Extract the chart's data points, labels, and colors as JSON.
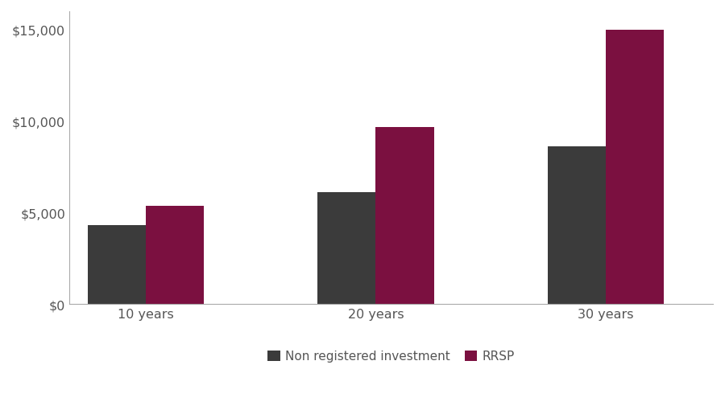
{
  "categories": [
    "10 years",
    "20 years",
    "30 years"
  ],
  "non_registered": [
    4300,
    6100,
    8600
  ],
  "rrsp": [
    5350,
    9650,
    15000
  ],
  "non_registered_color": "#3b3b3b",
  "rrsp_color": "#7b1040",
  "background_color": "#ffffff",
  "legend_labels": [
    "Non registered investment",
    "RRSP"
  ],
  "ylim": [
    0,
    16000
  ],
  "yticks": [
    0,
    5000,
    10000,
    15000
  ],
  "ytick_labels": [
    "$0",
    "$5,000",
    "$10,000",
    "$15,000"
  ],
  "bar_width": 0.38,
  "x_positions": [
    0.5,
    2.0,
    3.5
  ],
  "tick_fontsize": 11.5,
  "legend_fontsize": 11,
  "spine_color": "#aaaaaa",
  "tick_color": "#555555"
}
